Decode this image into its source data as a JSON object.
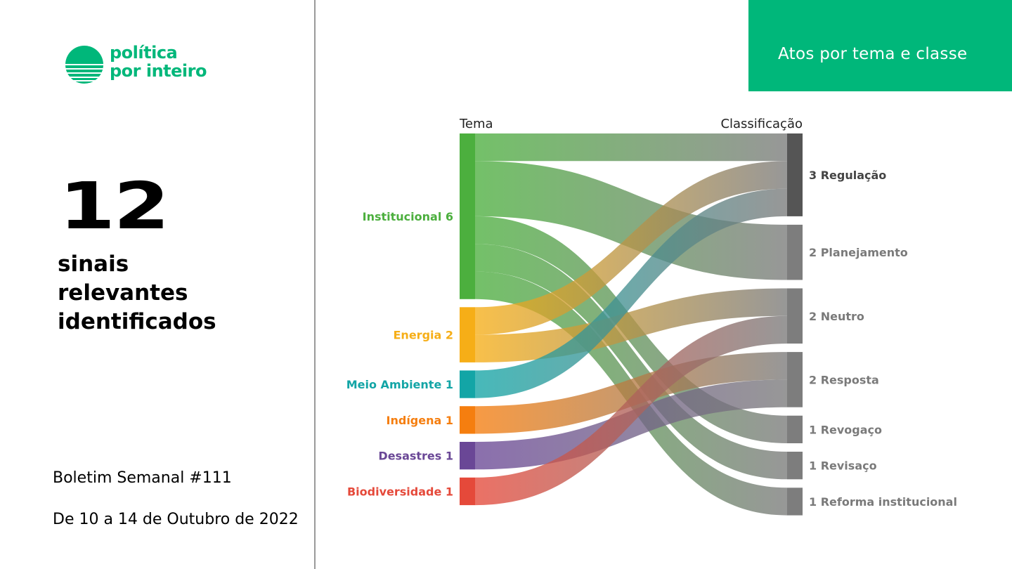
{
  "brand": {
    "line1": "política",
    "line2": "por inteiro",
    "color": "#00b77a"
  },
  "stats": {
    "count": "12",
    "line1": "sinais",
    "line2": "relevantes",
    "line3": "identificados"
  },
  "bulletin": "Boletim Semanal #111",
  "dates": "De 10 a 14 de Outubro de 2022",
  "header": {
    "title": "Atos por tema e classe",
    "color": "#00b77a"
  },
  "chart_data": {
    "type": "sankey",
    "left_header": "Tema",
    "right_header": "Classificação",
    "sources": [
      {
        "name": "Institucional",
        "value": 6,
        "label": "Institucional 6",
        "color": "#4caf3e"
      },
      {
        "name": "Energia",
        "value": 2,
        "label": "Energia 2",
        "color": "#f6ae17"
      },
      {
        "name": "Meio Ambiente",
        "value": 1,
        "label": "Meio Ambiente 1",
        "color": "#13a5a6"
      },
      {
        "name": "Indígena",
        "value": 1,
        "label": "Indígena 1",
        "color": "#f57e0f"
      },
      {
        "name": "Desastres",
        "value": 1,
        "label": "Desastres 1",
        "color": "#6a4796"
      },
      {
        "name": "Biodiversidade",
        "value": 1,
        "label": "Biodiversidade 1",
        "color": "#e5493a"
      }
    ],
    "targets": [
      {
        "name": "Regulação",
        "value": 3,
        "label": "3 Regulação",
        "color": "#555555"
      },
      {
        "name": "Planejamento",
        "value": 2,
        "label": "2 Planejamento",
        "color": "#7d7d7d"
      },
      {
        "name": "Neutro",
        "value": 2,
        "label": "2 Neutro",
        "color": "#7d7d7d"
      },
      {
        "name": "Resposta",
        "value": 2,
        "label": "2 Resposta",
        "color": "#7d7d7d"
      },
      {
        "name": "Revogaço",
        "value": 1,
        "label": "1 Revogaço",
        "color": "#7d7d7d"
      },
      {
        "name": "Revisaço",
        "value": 1,
        "label": "1 Revisaço",
        "color": "#7d7d7d"
      },
      {
        "name": "Reforma institucional",
        "value": 1,
        "label": "1 Reforma institucional",
        "color": "#7d7d7d"
      }
    ],
    "links": [
      {
        "source": "Institucional",
        "target": "Regulação",
        "value": 1
      },
      {
        "source": "Institucional",
        "target": "Planejamento",
        "value": 2
      },
      {
        "source": "Institucional",
        "target": "Revogaço",
        "value": 1
      },
      {
        "source": "Institucional",
        "target": "Revisaço",
        "value": 1
      },
      {
        "source": "Institucional",
        "target": "Reforma institucional",
        "value": 1
      },
      {
        "source": "Energia",
        "target": "Regulação",
        "value": 1
      },
      {
        "source": "Energia",
        "target": "Neutro",
        "value": 1
      },
      {
        "source": "Meio Ambiente",
        "target": "Regulação",
        "value": 1
      },
      {
        "source": "Indígena",
        "target": "Resposta",
        "value": 1
      },
      {
        "source": "Desastres",
        "target": "Resposta",
        "value": 1
      },
      {
        "source": "Biodiversidade",
        "target": "Neutro",
        "value": 1
      }
    ]
  }
}
